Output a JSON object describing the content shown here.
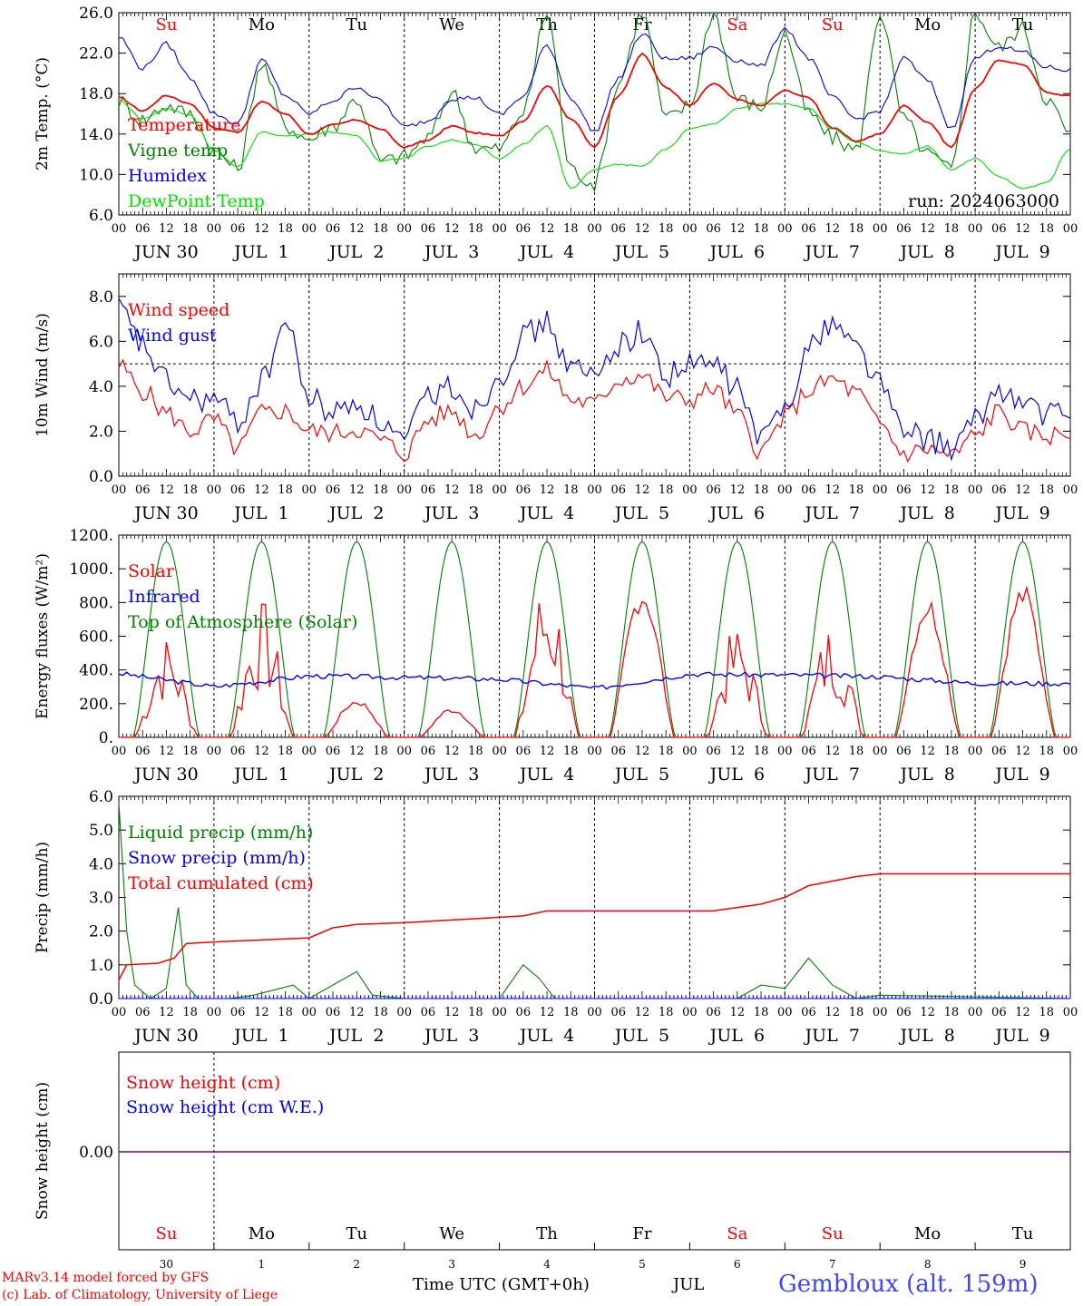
{
  "colors": {
    "red": "#ff0000",
    "green": "#008000",
    "blue": "#0000ff",
    "lightgreen": "#00e000",
    "purple": "#800080"
  },
  "days": [
    "Su",
    "Mo",
    "Tu",
    "We",
    "Th",
    "Fr",
    "Sa",
    "Su",
    "Mo",
    "Tu"
  ],
  "weekend_days": [
    0,
    6,
    7
  ],
  "hour_ticks": [
    "00",
    "06",
    "12",
    "18"
  ],
  "date_labels": [
    "JUN 30",
    "JUL  1",
    "JUL  2",
    "JUL  3",
    "JUL  4",
    "JUL  5",
    "JUL  6",
    "JUL  7",
    "JUL  8",
    "JUL  9"
  ],
  "day_numbers": [
    "30",
    "1",
    "2",
    "3",
    "4",
    "5",
    "6",
    "7",
    "8",
    "9"
  ],
  "footer": {
    "model_line1": "MARv3.14 model forced by GFS",
    "model_line2": "(c) Lab. of Climatology, University of Liege",
    "time_label": "Time UTC (GMT+0h)",
    "month_label": "JUL",
    "station": "Gembloux (alt. 159m)"
  },
  "chart_data": [
    {
      "type": "line",
      "ylabel": "2m Temp. (°C)",
      "ylim": [
        6,
        26
      ],
      "yticks": [
        "6.0",
        "10.0",
        "14.0",
        "18.0",
        "22.0",
        "26.0"
      ],
      "annotation": "run: 2024063000",
      "x": [
        0,
        6,
        12,
        18,
        24,
        30,
        36,
        42,
        48,
        54,
        60,
        66,
        72,
        78,
        84,
        90,
        96,
        102,
        108,
        114,
        120,
        126,
        132,
        138,
        144,
        150,
        156,
        162,
        168,
        174,
        180,
        186,
        192,
        198,
        204,
        210,
        216,
        222,
        228,
        234,
        240
      ],
      "series": [
        {
          "name": "Temperature",
          "color": "red",
          "values": [
            17.6,
            16.3,
            17.8,
            17.0,
            14.6,
            14.2,
            17.2,
            16.0,
            14.0,
            14.9,
            15.4,
            14.5,
            12.7,
            13.4,
            14.8,
            14.1,
            13.8,
            15.3,
            18.8,
            15.5,
            12.7,
            17.8,
            21.9,
            18.6,
            16.8,
            19.0,
            17.4,
            16.8,
            18.3,
            17.6,
            14.6,
            13.3,
            14.0,
            16.8,
            15.2,
            12.7,
            18.5,
            21.3,
            20.9,
            18.1,
            17.8
          ]
        },
        {
          "name": "Vigne temp",
          "color": "green",
          "values": [
            17.3,
            15.4,
            16.8,
            16.0,
            12.4,
            10.6,
            21.0,
            14.8,
            13.5,
            14.8,
            17.5,
            11.3,
            11.8,
            13.6,
            18.2,
            12.6,
            12.5,
            16.2,
            26.0,
            10.5,
            9.1,
            19.0,
            26.0,
            15.5,
            16.8,
            26.0,
            17.5,
            16.6,
            24.0,
            16.0,
            13.6,
            12.4,
            26.0,
            15.5,
            12.0,
            10.5,
            26.0,
            22.5,
            24.5,
            17.5,
            14.0
          ]
        },
        {
          "name": "Humidex",
          "color": "blue",
          "values": [
            23.6,
            20.5,
            22.9,
            19.6,
            16.0,
            15.0,
            21.3,
            17.8,
            16.0,
            17.3,
            18.7,
            17.3,
            14.7,
            15.3,
            17.5,
            17.6,
            15.9,
            17.7,
            22.8,
            17.6,
            14.2,
            19.5,
            23.9,
            21.4,
            21.5,
            22.6,
            21.3,
            20.7,
            24.5,
            21.5,
            17.6,
            15.5,
            16.3,
            21.5,
            19.3,
            14.5,
            21.5,
            22.7,
            22.1,
            20.6,
            20.3
          ]
        },
        {
          "name": "DewPoint Temp",
          "color": "lightgreen",
          "values": [
            17.4,
            15.5,
            16.5,
            15.9,
            12.4,
            10.7,
            14.2,
            13.8,
            14.0,
            14.2,
            13.8,
            11.4,
            11.6,
            12.8,
            13.4,
            13.0,
            11.5,
            13.0,
            14.8,
            8.6,
            10.5,
            11.0,
            10.8,
            12.5,
            14.5,
            15.0,
            16.5,
            17.0,
            17.0,
            16.6,
            14.5,
            13.2,
            12.3,
            12.0,
            12.8,
            10.5,
            11.6,
            9.8,
            8.6,
            9.2,
            12.6
          ]
        }
      ]
    },
    {
      "type": "line",
      "ylabel": "10m Wind (m/s)",
      "ylim": [
        0,
        9
      ],
      "yticks": [
        "0.0",
        "2.0",
        "4.0",
        "6.0",
        "8.0"
      ],
      "reference_line": 5.0,
      "x": [
        0,
        6,
        12,
        18,
        24,
        30,
        36,
        42,
        48,
        54,
        60,
        66,
        72,
        78,
        84,
        90,
        96,
        102,
        108,
        114,
        120,
        126,
        132,
        138,
        144,
        150,
        156,
        162,
        168,
        174,
        180,
        186,
        192,
        198,
        204,
        210,
        216,
        222,
        228,
        234,
        240
      ],
      "series": [
        {
          "name": "Wind speed",
          "color": "red",
          "values": [
            4.9,
            3.8,
            2.8,
            2.0,
            2.5,
            1.2,
            2.8,
            2.9,
            2.0,
            1.9,
            2.1,
            1.6,
            1.0,
            2.5,
            2.9,
            1.8,
            3.1,
            4.0,
            4.7,
            3.4,
            3.2,
            4.3,
            4.5,
            3.5,
            3.4,
            3.9,
            2.7,
            1.1,
            2.6,
            3.8,
            4.3,
            3.7,
            2.3,
            1.0,
            1.2,
            0.9,
            1.8,
            2.9,
            2.0,
            1.8,
            1.9
          ]
        },
        {
          "name": "Wind gust",
          "color": "blue",
          "values": [
            7.4,
            5.8,
            4.2,
            3.4,
            3.4,
            2.4,
            4.2,
            6.8,
            3.5,
            2.8,
            3.3,
            2.4,
            1.5,
            3.6,
            4.0,
            3.0,
            4.5,
            6.2,
            6.8,
            4.8,
            4.4,
            5.9,
            6.4,
            4.5,
            4.9,
            5.0,
            3.9,
            1.6,
            3.2,
            5.7,
            6.9,
            5.8,
            4.2,
            1.9,
            1.7,
            1.2,
            2.4,
            3.9,
            3.2,
            2.8,
            2.6
          ]
        }
      ]
    },
    {
      "type": "line",
      "ylabel": "Energy fluxes (W/m²)",
      "ylim": [
        0,
        1200
      ],
      "yticks": [
        "0.",
        "200.",
        "400.",
        "600.",
        "800.",
        "1000.",
        "1200."
      ],
      "series": [
        {
          "name": "Solar",
          "color": "red",
          "day_peaks": [
            560,
            750,
            220,
            170,
            900,
            880,
            610,
            640,
            810,
            880
          ]
        },
        {
          "name": "Infrared",
          "color": "blue",
          "day_levels": [
            380,
            300,
            365,
            355,
            345,
            290,
            375,
            370,
            360,
            320
          ]
        },
        {
          "name": "Top of Atmosphere (Solar)",
          "color": "green",
          "peak": 1160
        }
      ]
    },
    {
      "type": "line",
      "ylabel": "Precip (mm/h)",
      "ylim": [
        0,
        6
      ],
      "yticks": [
        "0.0",
        "1.0",
        "2.0",
        "3.0",
        "4.0",
        "5.0",
        "6.0"
      ],
      "series": [
        {
          "name": "Liquid precip (mm/h)",
          "color": "green",
          "points": [
            [
              0,
              5.8
            ],
            [
              2,
              2.0
            ],
            [
              4,
              0.4
            ],
            [
              8,
              0.0
            ],
            [
              12,
              0.3
            ],
            [
              15,
              2.7
            ],
            [
              17,
              0.4
            ],
            [
              20,
              0.0
            ],
            [
              28,
              0.0
            ],
            [
              34,
              0.1
            ],
            [
              44,
              0.4
            ],
            [
              48,
              0.0
            ],
            [
              54,
              0.4
            ],
            [
              60,
              0.8
            ],
            [
              64,
              0.1
            ],
            [
              72,
              0.0
            ],
            [
              96,
              0.0
            ],
            [
              102,
              1.0
            ],
            [
              106,
              0.6
            ],
            [
              110,
              0.0
            ],
            [
              156,
              0.0
            ],
            [
              162,
              0.4
            ],
            [
              168,
              0.3
            ],
            [
              174,
              1.2
            ],
            [
              180,
              0.4
            ],
            [
              186,
              0.0
            ],
            [
              192,
              0.1
            ],
            [
              240,
              0.0
            ]
          ]
        },
        {
          "name": "Snow precip (mm/h)",
          "color": "blue",
          "points": [
            [
              0,
              0.0
            ],
            [
              240,
              0.0
            ]
          ]
        },
        {
          "name": "Total cumulated (cm)",
          "color": "red",
          "points": [
            [
              0,
              0.55
            ],
            [
              2,
              1.0
            ],
            [
              10,
              1.05
            ],
            [
              14,
              1.2
            ],
            [
              17,
              1.63
            ],
            [
              24,
              1.68
            ],
            [
              48,
              1.8
            ],
            [
              54,
              2.1
            ],
            [
              60,
              2.2
            ],
            [
              72,
              2.25
            ],
            [
              84,
              2.33
            ],
            [
              102,
              2.45
            ],
            [
              108,
              2.6
            ],
            [
              150,
              2.6
            ],
            [
              162,
              2.8
            ],
            [
              168,
              3.0
            ],
            [
              174,
              3.35
            ],
            [
              186,
              3.62
            ],
            [
              192,
              3.7
            ],
            [
              240,
              3.7
            ]
          ]
        }
      ]
    },
    {
      "type": "line",
      "ylabel": "Snow height (cm)",
      "yticks": [
        "0.00"
      ],
      "series": [
        {
          "name": "Snow height (cm)",
          "color": "red",
          "values": [
            0,
            0
          ]
        },
        {
          "name": "Snow height (cm W.E.)",
          "color": "blue",
          "values": [
            0,
            0
          ]
        }
      ]
    }
  ]
}
